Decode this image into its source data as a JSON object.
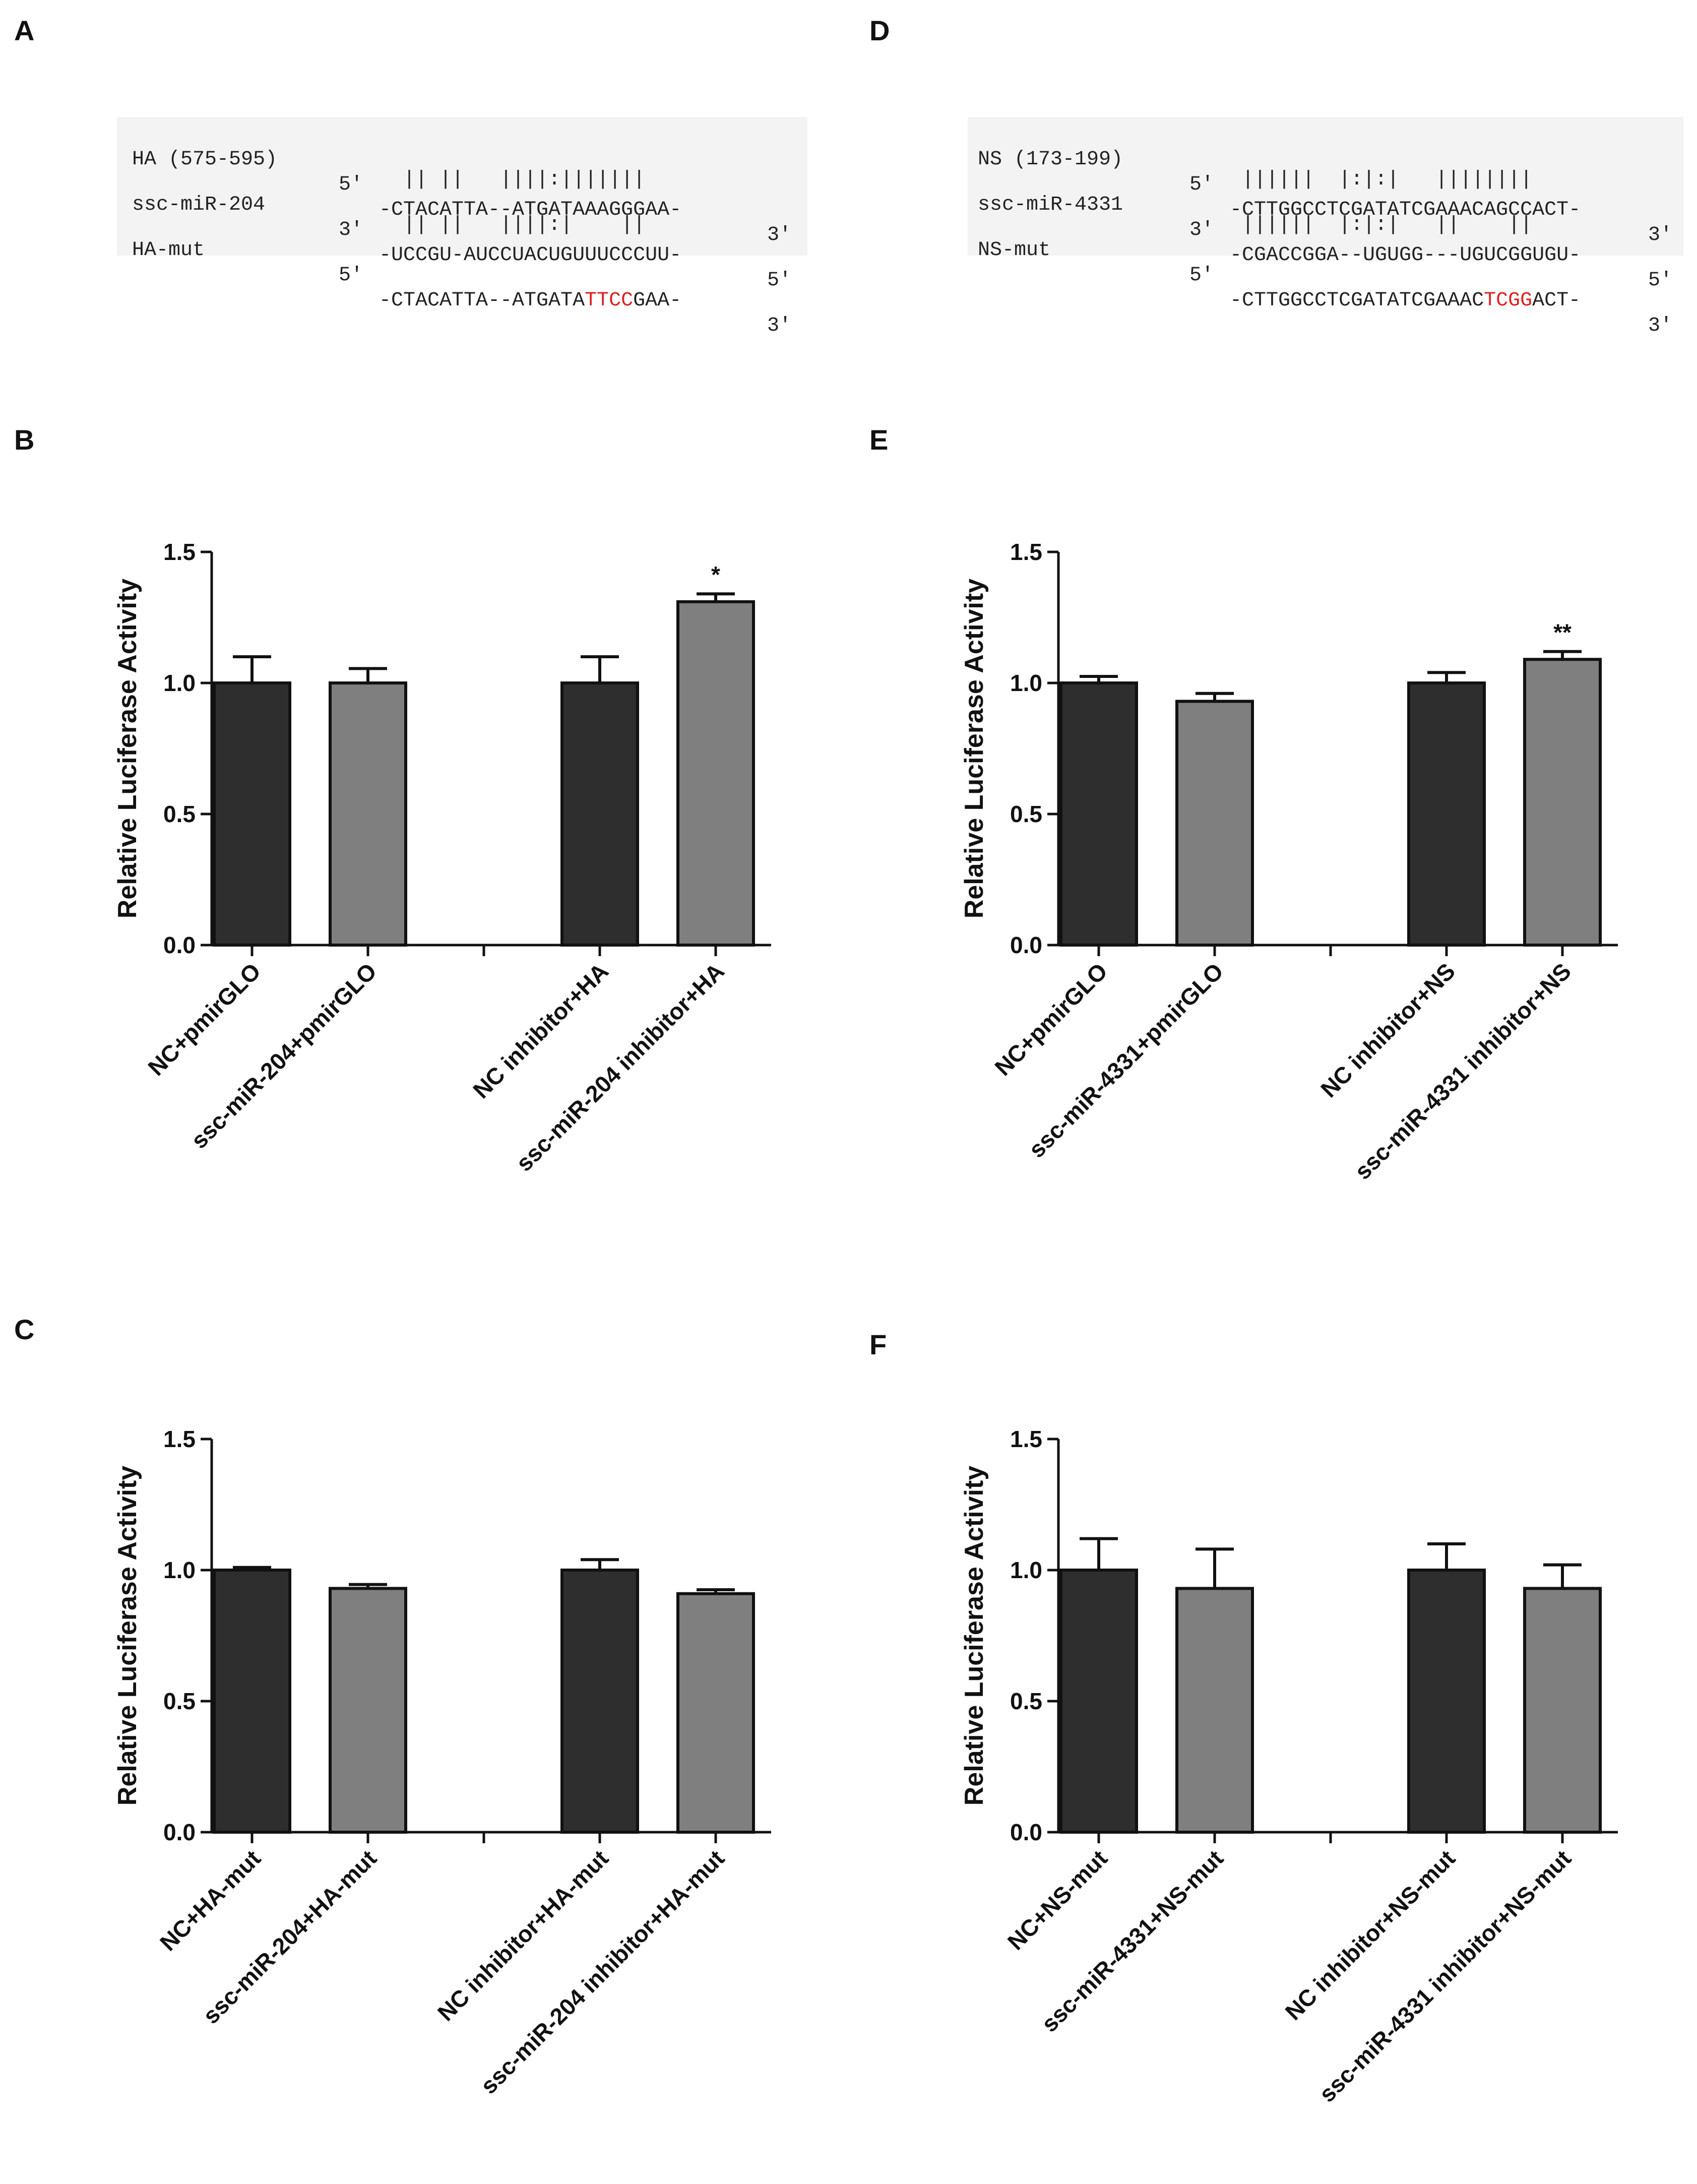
{
  "panels": {
    "A": "A",
    "B": "B",
    "C": "C",
    "D": "D",
    "E": "E",
    "F": "F"
  },
  "alignments": [
    {
      "id": "A",
      "rows": [
        {
          "name": "HA (575-595)",
          "end5": "5'",
          "seq": "-CTACATTA--ATGATAAAGGGAA-",
          "end3": "3'"
        },
        {
          "name": "",
          "end5": "",
          "seq": "  || ||   ||||:|||||||",
          "end3": ""
        },
        {
          "name": "ssc-miR-204",
          "end5": "3'",
          "seq": "-UCCGU-AUCCUACUGUUUCCCUU-",
          "end3": "5'"
        },
        {
          "name": "",
          "end5": "",
          "seq": "  || ||   ||||:|    ||",
          "end3": ""
        },
        {
          "name": "HA-mut",
          "end5": "5'",
          "seq_pre": "-CTACATTA--ATGATA",
          "seq_mut": "TTCC",
          "seq_post": "GAA-",
          "end3": "3'"
        }
      ]
    },
    {
      "id": "D",
      "rows": [
        {
          "name": "NS (173-199)",
          "end5": "5'",
          "seq": "-CTTGGCCTCGATATCGAAACAGCCACT-",
          "end3": "3'"
        },
        {
          "name": "",
          "end5": "",
          "seq": " ||||||  |:|:|   ||||||||",
          "end3": ""
        },
        {
          "name": "ssc-miR-4331",
          "end5": "3'",
          "seq": "-CGACCGGA--UGUGG---UGUCGGUGU-",
          "end3": "5'"
        },
        {
          "name": "",
          "end5": "",
          "seq": " ||||||  |:|:|   ||    ||",
          "end3": ""
        },
        {
          "name": "NS-mut",
          "end5": "5'",
          "seq_pre": "-CTTGGCCTCGATATCGAAAC",
          "seq_mut": "TCGG",
          "seq_post": "ACT-",
          "end3": "3'"
        }
      ]
    }
  ],
  "colors": {
    "dark_bar": "#2e2e2e",
    "light_bar": "#7f7f7f",
    "axis": "#111111",
    "mutation": "#e02020"
  },
  "chart_data": [
    {
      "id": "B",
      "type": "bar",
      "ylabel": "Relative Luciferase Activity",
      "ylim": [
        0,
        1.5
      ],
      "yticks": [
        "0.0",
        "0.5",
        "1.0",
        "1.5"
      ],
      "categories": [
        "NC+pmirGLO",
        "ssc-miR-204+pmirGLO",
        "NC inhibitor+HA",
        "ssc-miR-204 inhibitor+HA"
      ],
      "values": [
        1.0,
        1.0,
        1.0,
        1.31
      ],
      "errors": [
        0.1,
        0.055,
        0.1,
        0.03
      ],
      "shades": [
        "dark",
        "light",
        "dark",
        "light"
      ],
      "annotations": [
        "",
        "",
        "",
        "*"
      ]
    },
    {
      "id": "C",
      "type": "bar",
      "ylabel": "Relative Luciferase Activity",
      "ylim": [
        0,
        1.5
      ],
      "yticks": [
        "0.0",
        "0.5",
        "1.0",
        "1.5"
      ],
      "categories": [
        "NC+HA-mut",
        "ssc-miR-204+HA-mut",
        "NC inhibitor+HA-mut",
        "ssc-miR-204 inhibitor+HA-mut"
      ],
      "values": [
        1.0,
        0.93,
        1.0,
        0.91
      ],
      "errors": [
        0.01,
        0.015,
        0.04,
        0.015
      ],
      "shades": [
        "dark",
        "light",
        "dark",
        "light"
      ],
      "annotations": [
        "",
        "",
        "",
        ""
      ]
    },
    {
      "id": "E",
      "type": "bar",
      "ylabel": "Relative Luciferase Activity",
      "ylim": [
        0,
        1.5
      ],
      "yticks": [
        "0.0",
        "0.5",
        "1.0",
        "1.5"
      ],
      "categories": [
        "NC+pmirGLO",
        "ssc-miR-4331+pmirGLO",
        "NC inhibitor+NS",
        "ssc-miR-4331 inhibitor+NS"
      ],
      "values": [
        1.0,
        0.93,
        1.0,
        1.09
      ],
      "errors": [
        0.025,
        0.03,
        0.04,
        0.03
      ],
      "shades": [
        "dark",
        "light",
        "dark",
        "light"
      ],
      "annotations": [
        "",
        "",
        "",
        "**"
      ]
    },
    {
      "id": "F",
      "type": "bar",
      "ylabel": "Relative Luciferase Activity",
      "ylim": [
        0,
        1.5
      ],
      "yticks": [
        "0.0",
        "0.5",
        "1.0",
        "1.5"
      ],
      "categories": [
        "NC+NS-mut",
        "ssc-miR-4331+NS-mut",
        "NC inhibitor+NS-mut",
        "ssc-miR-4331 inhibitor+NS-mut"
      ],
      "values": [
        1.0,
        0.93,
        1.0,
        0.93
      ],
      "errors": [
        0.12,
        0.15,
        0.1,
        0.09
      ],
      "shades": [
        "dark",
        "light",
        "dark",
        "light"
      ],
      "annotations": [
        "",
        "",
        "",
        ""
      ]
    }
  ]
}
